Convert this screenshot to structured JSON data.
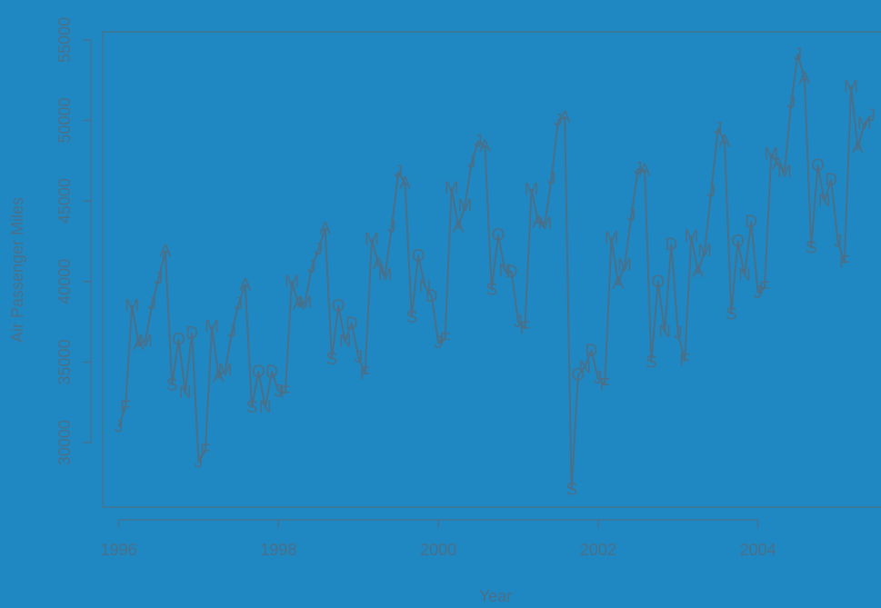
{
  "chart_data": {
    "type": "line",
    "title": "",
    "xlabel": "Year",
    "ylabel": "Air Passenger Miles",
    "xlim": [
      1995.8,
      2005.7
    ],
    "ylim": [
      26000,
      55500
    ],
    "x_ticks": [
      "1996",
      "1998",
      "2000",
      "2002",
      "2004"
    ],
    "y_ticks": [
      "30000",
      "35000",
      "40000",
      "45000",
      "50000",
      "55000"
    ],
    "grid": false,
    "colors": {
      "background": "#1f88c2",
      "line": "#4a6f88",
      "text": "#4a6f88"
    },
    "series": [
      {
        "x_start": 1996.0,
        "x_step": 0.0833333,
        "month_labels": [
          "J",
          "F",
          "M",
          "A",
          "M",
          "J",
          "J",
          "A",
          "S",
          "O",
          "N",
          "D"
        ],
        "values": [
          31000,
          32200,
          38500,
          36100,
          36300,
          38600,
          40200,
          41900,
          33600,
          36400,
          33100,
          36800,
          28800,
          29500,
          37200,
          34100,
          34500,
          36900,
          38600,
          39800,
          32200,
          34400,
          32200,
          34400,
          33200,
          33100,
          40000,
          38600,
          38700,
          40900,
          42000,
          43300,
          35200,
          38500,
          36300,
          37400,
          35300,
          34300,
          42600,
          41100,
          40400,
          43400,
          46800,
          46100,
          37800,
          41600,
          39700,
          39100,
          36200,
          36400,
          45800,
          43400,
          44700,
          47400,
          48700,
          48400,
          39500,
          42900,
          40700,
          40600,
          37500,
          37100,
          45700,
          43700,
          43600,
          46400,
          50000,
          50200,
          27100,
          34200,
          34700,
          35700,
          34000,
          33600,
          42700,
          39900,
          41000,
          44100,
          47000,
          46900,
          35000,
          40000,
          36900,
          42300,
          36800,
          35100,
          42800,
          40600,
          41900,
          45600,
          49500,
          48700,
          38000,
          42500,
          40400,
          43700,
          39300,
          39600,
          47900,
          47300,
          46800,
          51100,
          54100,
          52600,
          42100,
          47200,
          45000,
          46300,
          42500,
          41200,
          52100,
          48300,
          49800,
          50300
        ]
      }
    ]
  }
}
